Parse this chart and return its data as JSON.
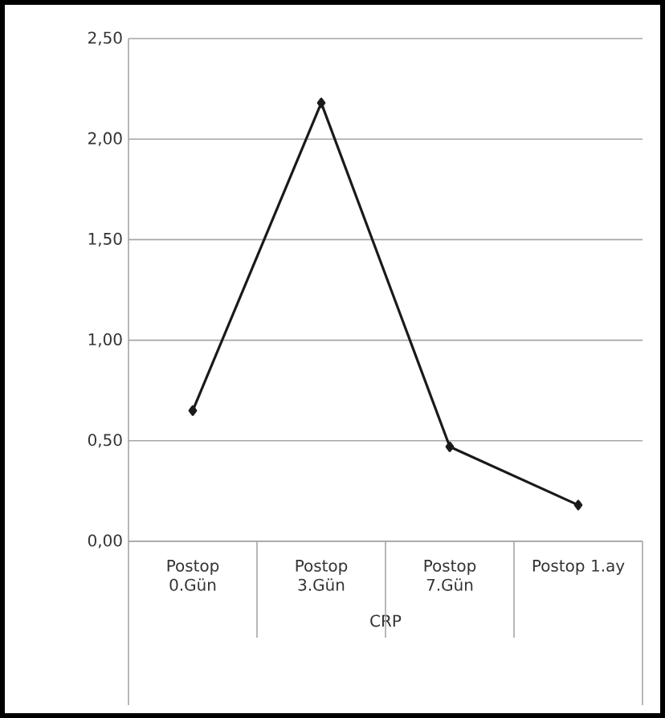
{
  "chart_data": {
    "type": "line",
    "xlabel": "CRP",
    "categories": [
      "Postop 0.Gün",
      "Postop 3.Gün",
      "Postop 7.Gün",
      "Postop 1.ay"
    ],
    "values": [
      0.65,
      2.18,
      0.47,
      0.18
    ],
    "color": "#1a1a1a",
    "marker": "diamond",
    "ylim": [
      0,
      2.5
    ],
    "yticks": [
      {
        "value": 0,
        "label": "0,00"
      },
      {
        "value": 0.5,
        "label": "0,50"
      },
      {
        "value": 1,
        "label": "1,00"
      },
      {
        "value": 1.5,
        "label": "1,50"
      },
      {
        "value": 2,
        "label": "2,00"
      },
      {
        "value": 2.5,
        "label": "2,50"
      }
    ],
    "grid": "y"
  }
}
